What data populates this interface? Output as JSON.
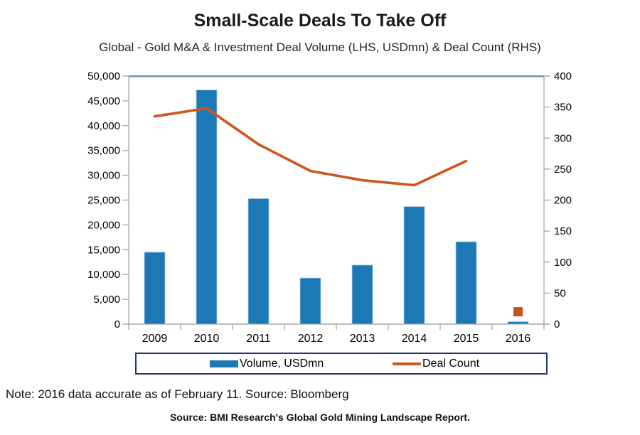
{
  "chart_data": {
    "type": "combo-bar-line",
    "title": "Small-Scale Deals To Take Off",
    "subtitle": "Global - Gold M&A & Investment Deal Volume (LHS, USDmn) & Deal Count (RHS)",
    "categories": [
      "2009",
      "2010",
      "2011",
      "2012",
      "2013",
      "2014",
      "2015",
      "2016"
    ],
    "series": [
      {
        "name": "Volume, USDmn",
        "type": "bar",
        "axis": "left",
        "values": [
          14500,
          47200,
          25300,
          9300,
          11900,
          23700,
          16600,
          500
        ]
      },
      {
        "name": "Deal Count",
        "type": "line",
        "axis": "right",
        "values": [
          335,
          348,
          290,
          247,
          232,
          224,
          263,
          20
        ],
        "marker_only_indices": [
          7
        ]
      }
    ],
    "axes": {
      "left": {
        "min": 0,
        "max": 50000,
        "step": 5000,
        "tick_format": "thousands-comma"
      },
      "right": {
        "min": 0,
        "max": 400,
        "step": 50,
        "tick_format": "plain"
      }
    },
    "grid": false,
    "legend_position": "bottom"
  },
  "page": {
    "note": "Note: 2016 data accurate as of February 11. Source: Bloomberg",
    "source": "Source: BMI Research's Global Gold Mining Landscape Report."
  },
  "colors": {
    "bar": "#1D79B5",
    "bar_edge": "#AECBE5",
    "line": "#CC561B",
    "marker": "#C5541A",
    "plot_top_border": "#4F6E96",
    "plot_top_border_light": "#C3D3E8",
    "axis": "#A6A6A6",
    "legend_border": "#24386C",
    "text": "#1A1A1A"
  }
}
